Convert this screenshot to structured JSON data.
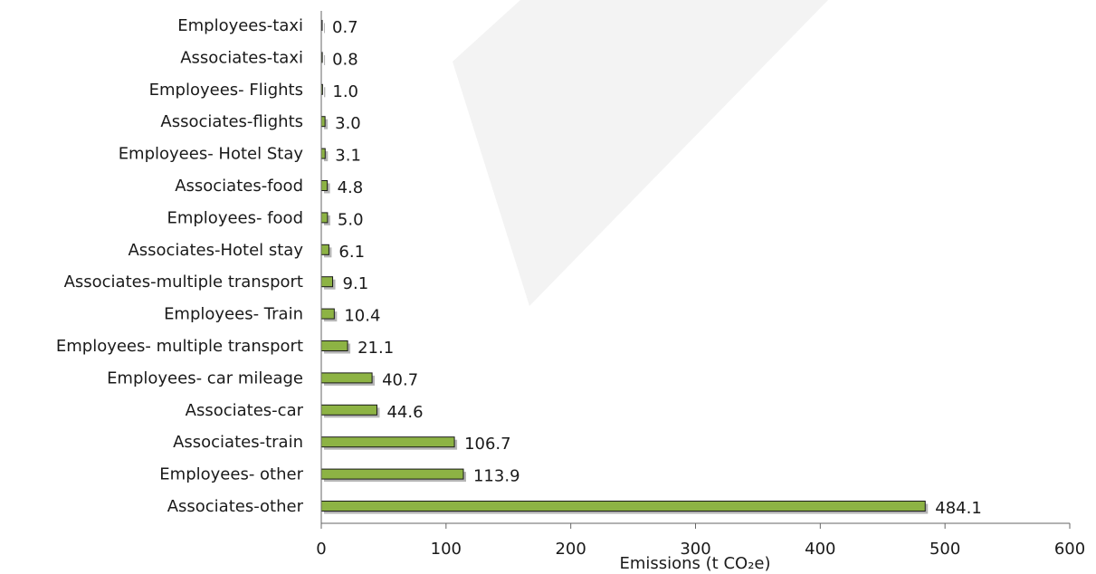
{
  "chart_data": {
    "type": "bar",
    "orientation": "horizontal",
    "categories": [
      "Employees-taxi",
      "Associates-taxi",
      "Employees- Flights",
      "Associates-flights",
      "Employees- Hotel Stay",
      "Associates-food",
      "Employees- food",
      "Associates-Hotel stay",
      "Associates-multiple transport",
      "Employees- Train",
      "Employees- multiple transport",
      "Employees- car mileage",
      "Associates-car ",
      "Associates-train",
      "Employees- other",
      "Associates-other"
    ],
    "values": [
      0.7,
      0.8,
      1.0,
      3.0,
      3.1,
      4.8,
      5.0,
      6.1,
      9.1,
      10.4,
      21.1,
      40.7,
      44.6,
      106.7,
      113.9,
      484.1
    ],
    "value_labels": [
      "0.7",
      "0.8",
      "1.0",
      "3.0",
      "3.1",
      "4.8",
      "5.0",
      "6.1",
      "9.1",
      "10.4",
      "21.1",
      "40.7",
      "44.6",
      "106.7",
      "113.9",
      "484.1"
    ],
    "title": "",
    "xlabel": "Emissions (t CO₂e)",
    "ylabel": "",
    "xlim": [
      0,
      600
    ],
    "xticks": [
      "0",
      "100",
      "200",
      "300",
      "400",
      "500",
      "600"
    ],
    "grid": false,
    "legend": "none",
    "bar_color": "#8db344",
    "bar_edge_color": "#1a1a1a",
    "shadow_color": "#b5b5b5",
    "watermark_color": "#f2f2f2"
  }
}
